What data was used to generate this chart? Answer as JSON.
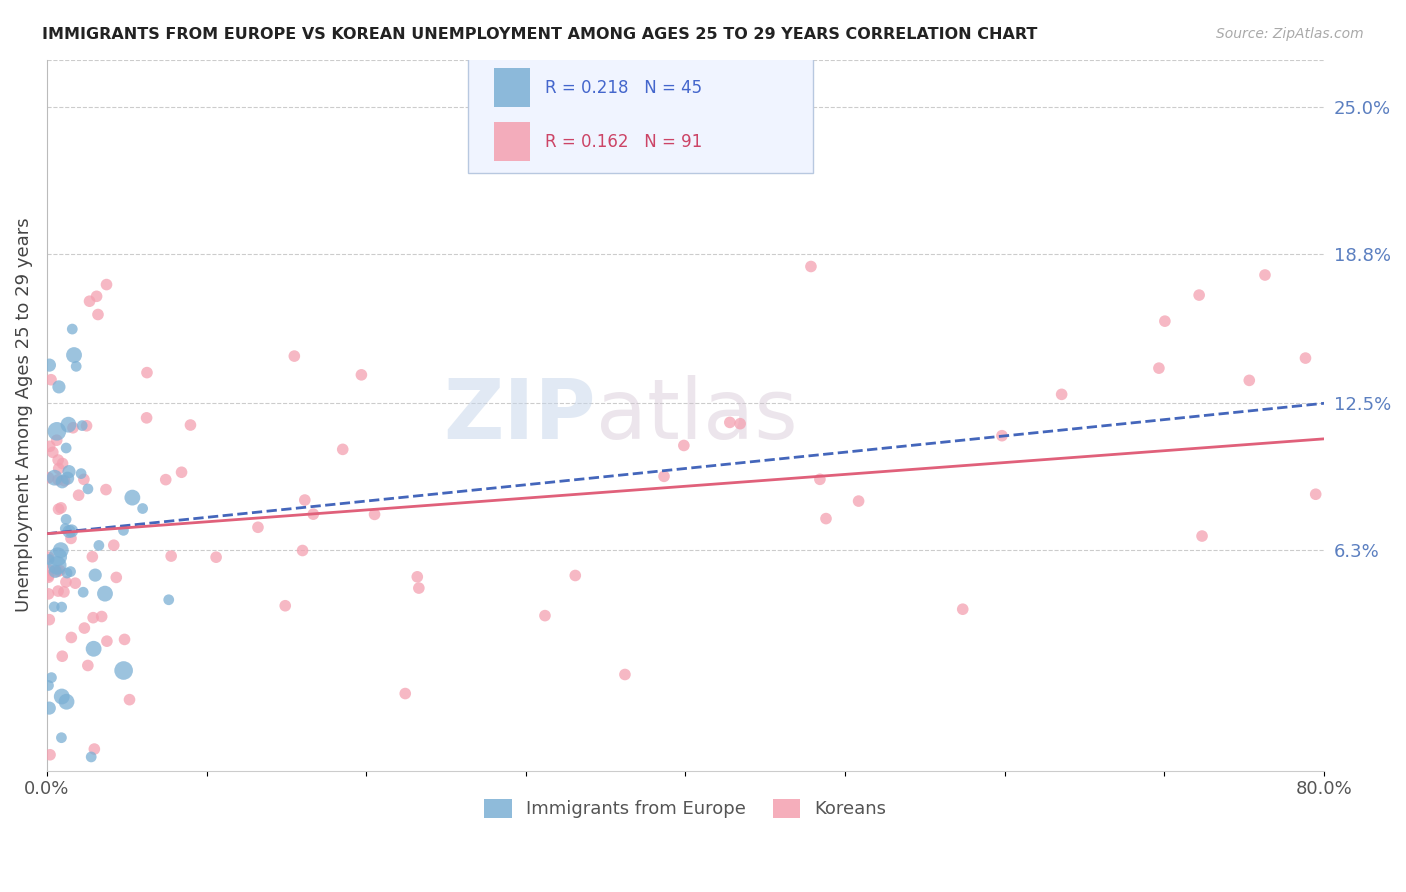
{
  "title": "IMMIGRANTS FROM EUROPE VS KOREAN UNEMPLOYMENT AMONG AGES 25 TO 29 YEARS CORRELATION CHART",
  "source": "Source: ZipAtlas.com",
  "ylabel": "Unemployment Among Ages 25 to 29 years",
  "xlim": [
    0.0,
    0.8
  ],
  "ylim": [
    -0.03,
    0.27
  ],
  "ytick_right_values": [
    0.063,
    0.125,
    0.188,
    0.25
  ],
  "ytick_right_labels": [
    "6.3%",
    "12.5%",
    "18.8%",
    "25.0%"
  ],
  "grid_color": "#cccccc",
  "background_color": "#ffffff",
  "series1_name": "Immigrants from Europe",
  "series1_color": "#7bafd4",
  "series1_line_color": "#4466bb",
  "series1_R": 0.218,
  "series1_N": 45,
  "series2_name": "Koreans",
  "series2_color": "#f4a0b0",
  "series2_line_color": "#e0607a",
  "series2_R": 0.162,
  "series2_N": 91,
  "watermark": "ZIPatlas",
  "title_color": "#222222",
  "right_tick_color": "#5b7fc0",
  "trend1_x0": 0.0,
  "trend1_y0": 0.07,
  "trend1_x1": 0.8,
  "trend1_y1": 0.125,
  "trend2_x0": 0.0,
  "trend2_y0": 0.07,
  "trend2_x1": 0.8,
  "trend2_y1": 0.11
}
